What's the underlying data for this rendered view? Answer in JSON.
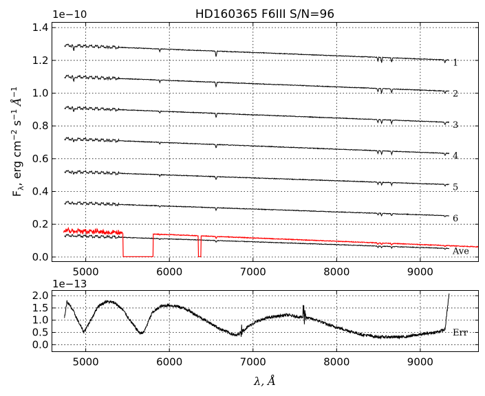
{
  "chart_data": [
    {
      "type": "line",
      "title": "HD160365  F6III  S/N=96",
      "offset_label": "1e−10",
      "ylabel_main": "F",
      "ylabel_sub": "λ",
      "ylabel_rest": ", erg cm",
      "ylabel_exp1": "−2",
      "ylabel_s": " s",
      "ylabel_exp2": "−1",
      "ylabel_a": " Å",
      "ylabel_exp3": "−1",
      "xlim": [
        4600,
        9700
      ],
      "ylim": [
        -0.03,
        1.43
      ],
      "x_ticks": [
        5000,
        6000,
        7000,
        8000,
        9000
      ],
      "x_tick_labels": [
        "5000",
        "6000",
        "7000",
        "8000",
        "9000"
      ],
      "y_ticks": [
        0.0,
        0.2,
        0.4,
        0.6,
        0.8,
        1.0,
        1.2,
        1.4
      ],
      "y_tick_labels": [
        "0.0",
        "0.2",
        "0.4",
        "0.6",
        "0.8",
        "1.0",
        "1.2",
        "1.4"
      ],
      "grid": true,
      "series": [
        {
          "name": "1",
          "color": "#000000",
          "x_range": [
            4750,
            9350
          ],
          "start": 1.29,
          "end": 1.2
        },
        {
          "name": "2",
          "color": "#000000",
          "x_range": [
            4750,
            9350
          ],
          "start": 1.1,
          "end": 1.01
        },
        {
          "name": "3",
          "color": "#000000",
          "x_range": [
            4750,
            9350
          ],
          "start": 0.91,
          "end": 0.82
        },
        {
          "name": "4",
          "color": "#000000",
          "x_range": [
            4750,
            9350
          ],
          "start": 0.72,
          "end": 0.63
        },
        {
          "name": "5",
          "color": "#000000",
          "x_range": [
            4750,
            9350
          ],
          "start": 0.52,
          "end": 0.44
        },
        {
          "name": "6",
          "color": "#000000",
          "x_range": [
            4750,
            9350
          ],
          "start": 0.33,
          "end": 0.25
        },
        {
          "name": "Ave",
          "color": "#000000",
          "x_range": [
            4750,
            9350
          ],
          "start": 0.13,
          "end": 0.05
        },
        {
          "name": "",
          "color": "#ff0000",
          "x_range": [
            4740,
            9700
          ],
          "start": 0.16,
          "end": 0.06,
          "zero_gaps": [
            [
              5450,
              5810
            ],
            [
              6350,
              6380
            ]
          ]
        }
      ]
    },
    {
      "type": "line",
      "offset_label": "1e−13",
      "xlabel": "λ, Å",
      "xlim": [
        4600,
        9700
      ],
      "ylim": [
        -0.3,
        2.2
      ],
      "x_ticks": [
        5000,
        6000,
        7000,
        8000,
        9000
      ],
      "x_tick_labels": [
        "5000",
        "6000",
        "7000",
        "8000",
        "9000"
      ],
      "y_ticks": [
        0.0,
        0.5,
        1.0,
        1.5,
        2.0
      ],
      "y_tick_labels": [
        "0.0",
        "0.5",
        "1.0",
        "1.5",
        "2.0"
      ],
      "grid": true,
      "series": [
        {
          "name": "Err",
          "color": "#000000",
          "x": [
            4750,
            4780,
            4850,
            4920,
            4980,
            5050,
            5150,
            5250,
            5350,
            5450,
            5550,
            5650,
            5700,
            5800,
            5900,
            6000,
            6100,
            6200,
            6300,
            6400,
            6500,
            6600,
            6700,
            6800,
            6900,
            7000,
            7100,
            7200,
            7300,
            7400,
            7500,
            7600,
            7700,
            7800,
            7900,
            8000,
            8100,
            8200,
            8300,
            8400,
            8500,
            8600,
            8700,
            8800,
            8900,
            9000,
            9100,
            9200,
            9300,
            9350
          ],
          "y": [
            1.1,
            1.75,
            1.4,
            0.9,
            0.5,
            0.9,
            1.55,
            1.75,
            1.7,
            1.4,
            0.9,
            0.45,
            0.5,
            1.3,
            1.55,
            1.6,
            1.55,
            1.45,
            1.25,
            1.05,
            0.85,
            0.65,
            0.5,
            0.35,
            0.6,
            0.85,
            1.0,
            1.1,
            1.15,
            1.2,
            1.15,
            1.1,
            1.05,
            0.95,
            0.8,
            0.7,
            0.6,
            0.5,
            0.4,
            0.35,
            0.3,
            0.3,
            0.3,
            0.3,
            0.35,
            0.4,
            0.45,
            0.5,
            0.6,
            2.1
          ]
        }
      ]
    }
  ]
}
